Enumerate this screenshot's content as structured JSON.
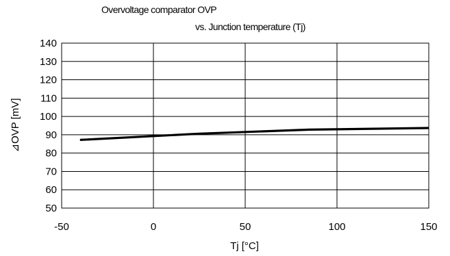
{
  "chart_data": {
    "type": "line",
    "title": "Overvoltage comparator    OVP",
    "subtitle": "vs. Junction temperature (Tj)",
    "xlabel": "Tj [°C]",
    "ylabel": "⊿OVP [mV]",
    "xlim": [
      -50,
      150
    ],
    "ylim": [
      50,
      140
    ],
    "x_ticks": [
      "-50",
      "0",
      "50",
      "100",
      "150"
    ],
    "y_ticks": [
      "140",
      "130",
      "120",
      "110",
      "100",
      "90",
      "80",
      "70",
      "60",
      "50"
    ],
    "grid": true,
    "series": [
      {
        "x": [
          -40,
          0,
          25,
          85,
          150
        ],
        "y": [
          87.2,
          89.3,
          90.6,
          92.8,
          93.7
        ]
      }
    ]
  }
}
